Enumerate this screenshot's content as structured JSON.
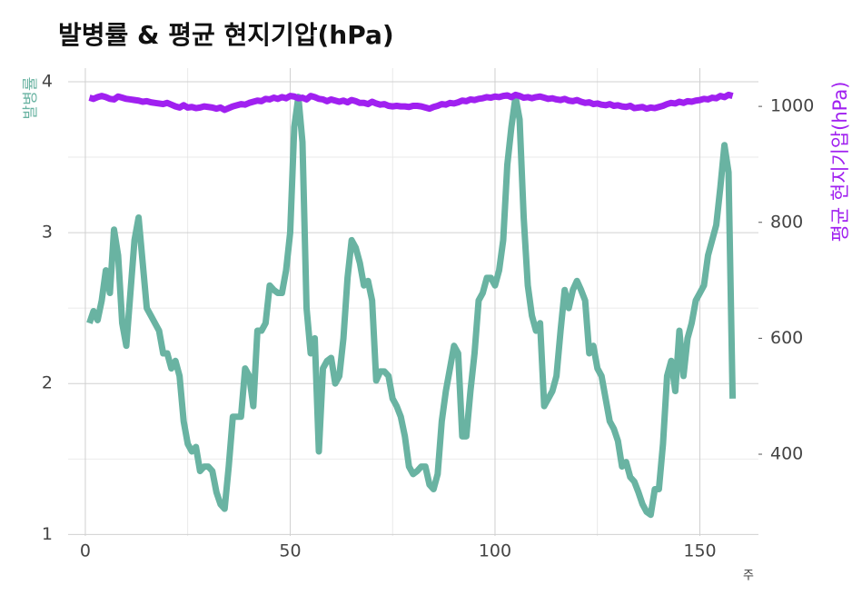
{
  "chart_data": {
    "type": "line",
    "title": "발병률 & 평균 현지기압(hPa)",
    "ylabel": "발병률",
    "y2label": "평균 현지기압(hPa)",
    "xlabel": "주",
    "x": [
      1,
      2,
      3,
      4,
      5,
      6,
      7,
      8,
      9,
      10,
      11,
      12,
      13,
      14,
      15,
      16,
      17,
      18,
      19,
      20,
      21,
      22,
      23,
      24,
      25,
      26,
      27,
      28,
      29,
      30,
      31,
      32,
      33,
      34,
      35,
      36,
      37,
      38,
      39,
      40,
      41,
      42,
      43,
      44,
      45,
      46,
      47,
      48,
      49,
      50,
      51,
      52,
      53,
      54,
      55,
      56,
      57,
      58,
      59,
      60,
      61,
      62,
      63,
      64,
      65,
      66,
      67,
      68,
      69,
      70,
      71,
      72,
      73,
      74,
      75,
      76,
      77,
      78,
      79,
      80,
      81,
      82,
      83,
      84,
      85,
      86,
      87,
      88,
      89,
      90,
      91,
      92,
      93,
      94,
      95,
      96,
      97,
      98,
      99,
      100,
      101,
      102,
      103,
      104,
      105,
      106,
      107,
      108,
      109,
      110,
      111,
      112,
      113,
      114,
      115,
      116,
      117,
      118,
      119,
      120,
      121,
      122,
      123,
      124,
      125,
      126,
      127,
      128,
      129,
      130,
      131,
      132,
      133,
      134,
      135,
      136,
      137,
      138,
      139,
      140,
      141,
      142,
      143,
      144,
      145,
      146,
      147,
      148,
      149,
      150,
      151,
      152,
      153,
      154,
      155,
      156,
      157,
      158
    ],
    "series": [
      {
        "name": "발병률",
        "color": "#69b3a2",
        "axis": "y",
        "values": [
          2.4,
          2.48,
          2.42,
          2.55,
          2.75,
          2.6,
          3.02,
          2.85,
          2.4,
          2.25,
          2.6,
          2.95,
          3.1,
          2.8,
          2.5,
          2.45,
          2.4,
          2.35,
          2.2,
          2.2,
          2.1,
          2.15,
          2.05,
          1.75,
          1.6,
          1.55,
          1.58,
          1.42,
          1.45,
          1.45,
          1.42,
          1.28,
          1.2,
          1.17,
          1.45,
          1.78,
          1.78,
          1.78,
          2.1,
          2.05,
          1.85,
          2.35,
          2.35,
          2.4,
          2.65,
          2.62,
          2.6,
          2.6,
          2.75,
          3.0,
          3.7,
          3.9,
          3.6,
          2.5,
          2.2,
          2.3,
          1.55,
          2.1,
          2.15,
          2.17,
          2.0,
          2.05,
          2.3,
          2.7,
          2.95,
          2.9,
          2.8,
          2.65,
          2.68,
          2.55,
          2.02,
          2.08,
          2.08,
          2.05,
          1.9,
          1.85,
          1.78,
          1.65,
          1.45,
          1.4,
          1.42,
          1.45,
          1.45,
          1.33,
          1.3,
          1.4,
          1.75,
          1.95,
          2.1,
          2.25,
          2.2,
          1.65,
          1.65,
          1.95,
          2.2,
          2.55,
          2.6,
          2.7,
          2.7,
          2.65,
          2.75,
          2.95,
          3.45,
          3.7,
          3.9,
          3.75,
          3.1,
          2.65,
          2.45,
          2.35,
          2.4,
          1.85,
          1.9,
          1.95,
          2.05,
          2.35,
          2.62,
          2.5,
          2.62,
          2.68,
          2.62,
          2.55,
          2.2,
          2.25,
          2.1,
          2.05,
          1.9,
          1.75,
          1.7,
          1.62,
          1.45,
          1.48,
          1.38,
          1.35,
          1.28,
          1.2,
          1.15,
          1.13,
          1.3,
          1.3,
          1.6,
          2.05,
          2.15,
          1.95,
          2.35,
          2.05,
          2.3,
          2.4,
          2.55,
          2.6,
          2.65,
          2.85,
          2.95,
          3.05,
          3.3,
          3.58,
          3.4,
          1.9
        ]
      },
      {
        "name": "평균 현지기압(hPa)",
        "color": "#a020f0",
        "axis": "y2",
        "values": [
          1015,
          1013,
          1016,
          1018,
          1016,
          1013,
          1012,
          1017,
          1015,
          1013,
          1012,
          1011,
          1010,
          1008,
          1009,
          1007,
          1006,
          1005,
          1004,
          1006,
          1003,
          1000,
          998,
          1002,
          998,
          999,
          997,
          998,
          1000,
          999,
          998,
          996,
          998,
          994,
          997,
          1000,
          1002,
          1004,
          1003,
          1006,
          1008,
          1010,
          1009,
          1013,
          1012,
          1015,
          1013,
          1016,
          1014,
          1018,
          1017,
          1014,
          1015,
          1012,
          1018,
          1016,
          1013,
          1012,
          1009,
          1012,
          1010,
          1008,
          1010,
          1007,
          1011,
          1009,
          1006,
          1006,
          1004,
          1008,
          1005,
          1003,
          1004,
          1001,
          1000,
          1001,
          1000,
          1000,
          999,
          1001,
          1001,
          1000,
          998,
          996,
          999,
          1001,
          1004,
          1003,
          1006,
          1005,
          1007,
          1010,
          1009,
          1012,
          1011,
          1013,
          1014,
          1016,
          1015,
          1017,
          1016,
          1018,
          1019,
          1016,
          1020,
          1018,
          1015,
          1016,
          1014,
          1016,
          1017,
          1015,
          1013,
          1014,
          1012,
          1011,
          1013,
          1010,
          1009,
          1011,
          1008,
          1006,
          1007,
          1004,
          1005,
          1003,
          1002,
          1004,
          1001,
          1002,
          1000,
          999,
          1001,
          997,
          998,
          999,
          996,
          998,
          997,
          999,
          1001,
          1004,
          1006,
          1005,
          1008,
          1006,
          1009,
          1008,
          1010,
          1011,
          1013,
          1012,
          1015,
          1014,
          1018,
          1016,
          1020,
          1018
        ]
      }
    ],
    "xlim": [
      -4.2,
      164.3
    ],
    "xticks": [
      0,
      50,
      100,
      150
    ],
    "xminor": [
      25,
      75,
      125
    ],
    "ylim": [
      0.99,
      4.09
    ],
    "yticks": [
      1,
      2,
      3,
      4
    ],
    "yminor": [
      1.5,
      2.5,
      3.5
    ],
    "y2lim": [
      259,
      1066
    ],
    "y2ticks": [
      400,
      600,
      800,
      1000
    ],
    "grid": true
  }
}
